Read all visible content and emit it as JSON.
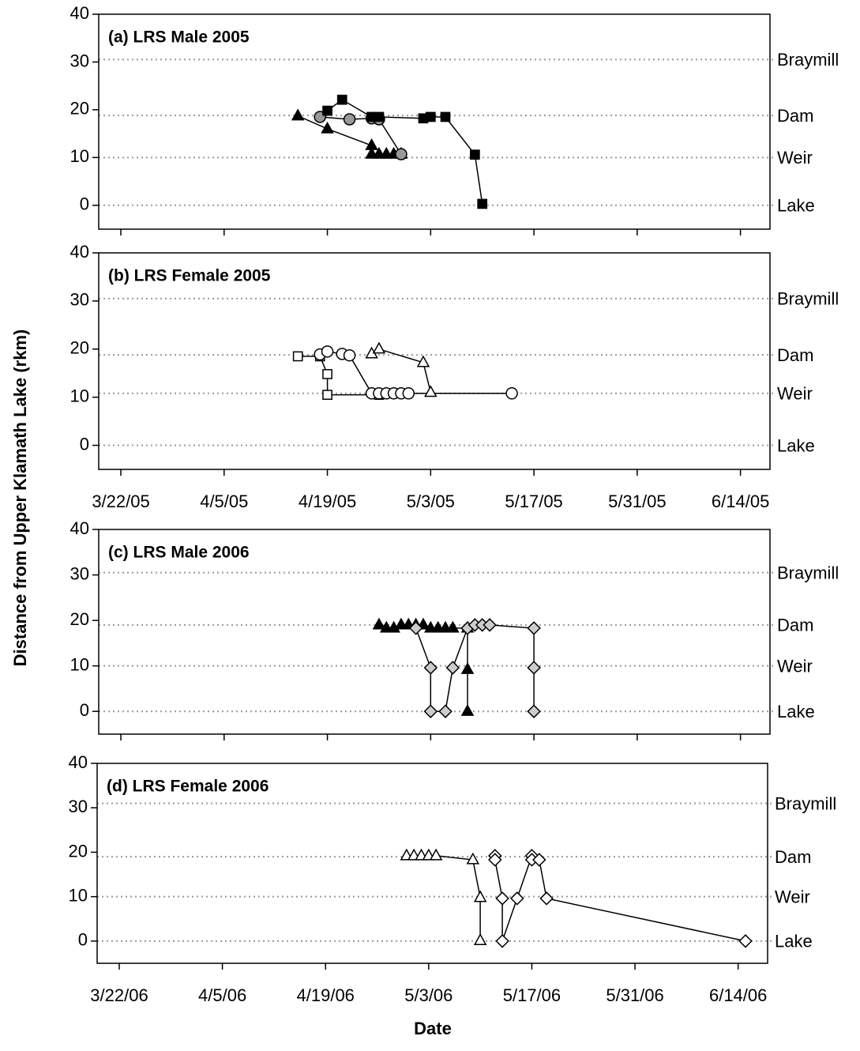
{
  "ylabel": "Distance from Upper Klamath Lake (rkm)",
  "xlabel": "Date",
  "chart_data": [
    {
      "type": "line",
      "title": "(a)  LRS Male 2005",
      "show_xtick_labels": false,
      "xlim": [
        "2005-03-19",
        "2005-06-18"
      ],
      "xticks": [
        {
          "value": "2005-03-22",
          "label": "3/22/05"
        },
        {
          "value": "2005-04-05",
          "label": "4/5/05"
        },
        {
          "value": "2005-04-19",
          "label": "4/19/05"
        },
        {
          "value": "2005-05-03",
          "label": "5/3/05"
        },
        {
          "value": "2005-05-17",
          "label": "5/17/05"
        },
        {
          "value": "2005-05-31",
          "label": "5/31/05"
        },
        {
          "value": "2005-06-14",
          "label": "6/14/05"
        }
      ],
      "ylim": [
        -5,
        40
      ],
      "yticks": [
        0,
        10,
        20,
        30,
        40
      ],
      "reference_lines": [
        {
          "value": 30.5,
          "label": "Braymill"
        },
        {
          "value": 18.8,
          "label": "Dam"
        },
        {
          "value": 10,
          "label": "Weir"
        },
        {
          "value": 0,
          "label": "Lake"
        }
      ],
      "series": [
        {
          "marker": "triangle",
          "color": "#000000",
          "fill": "#000000",
          "x": [
            "2005-04-15",
            "2005-04-19",
            "2005-04-25",
            "2005-04-25",
            "2005-04-26",
            "2005-04-27",
            "2005-04-28",
            "2005-04-29"
          ],
          "values": [
            18.7,
            16,
            12.5,
            10.7,
            10.7,
            10.7,
            10.7,
            10.7
          ]
        },
        {
          "marker": "circle",
          "color": "#000000",
          "fill": "#999999",
          "x": [
            "2005-04-18",
            "2005-04-22",
            "2005-04-25",
            "2005-04-26",
            "2005-04-29"
          ],
          "values": [
            18.5,
            18,
            18.2,
            18,
            10.7
          ]
        },
        {
          "marker": "square",
          "color": "#000000",
          "fill": "#000000",
          "x": [
            "2005-04-19",
            "2005-04-21",
            "2005-04-25",
            "2005-04-26",
            "2005-05-02",
            "2005-05-03",
            "2005-05-05",
            "2005-05-09",
            "2005-05-10"
          ],
          "values": [
            19.8,
            22.1,
            18.5,
            18.5,
            18.2,
            18.5,
            18.5,
            10.6,
            0.3
          ]
        }
      ]
    },
    {
      "type": "line",
      "title": "(b)  LRS Female 2005",
      "show_xtick_labels": true,
      "xlim": [
        "2005-03-19",
        "2005-06-18"
      ],
      "xticks": [
        {
          "value": "2005-03-22",
          "label": "3/22/05"
        },
        {
          "value": "2005-04-05",
          "label": "4/5/05"
        },
        {
          "value": "2005-04-19",
          "label": "4/19/05"
        },
        {
          "value": "2005-05-03",
          "label": "5/3/05"
        },
        {
          "value": "2005-05-17",
          "label": "5/17/05"
        },
        {
          "value": "2005-05-31",
          "label": "5/31/05"
        },
        {
          "value": "2005-06-14",
          "label": "6/14/05"
        }
      ],
      "ylim": [
        -5,
        40
      ],
      "yticks": [
        0,
        10,
        20,
        30,
        40
      ],
      "reference_lines": [
        {
          "value": 30.5,
          "label": "Braymill"
        },
        {
          "value": 18.8,
          "label": "Dam"
        },
        {
          "value": 10.8,
          "label": "Weir"
        },
        {
          "value": 0,
          "label": "Lake"
        }
      ],
      "series": [
        {
          "marker": "square",
          "color": "#000000",
          "fill": "#ffffff",
          "x": [
            "2005-04-15",
            "2005-04-18",
            "2005-04-19",
            "2005-04-19",
            "2005-04-26"
          ],
          "values": [
            18.5,
            18.5,
            14.8,
            10.5,
            10.5
          ]
        },
        {
          "marker": "circle",
          "color": "#000000",
          "fill": "#ffffff",
          "x": [
            "2005-04-18",
            "2005-04-19",
            "2005-04-21",
            "2005-04-22",
            "2005-04-25",
            "2005-04-26",
            "2005-04-27",
            "2005-04-28",
            "2005-04-29",
            "2005-04-30",
            "2005-05-14"
          ],
          "values": [
            18.9,
            19.5,
            19,
            18.7,
            10.8,
            10.8,
            10.8,
            10.8,
            10.8,
            10.8,
            10.8
          ]
        },
        {
          "marker": "triangle",
          "color": "#000000",
          "fill": "#ffffff",
          "x": [
            "2005-04-25",
            "2005-04-26",
            "2005-05-02",
            "2005-05-03"
          ],
          "values": [
            19,
            20,
            17.2,
            11
          ]
        }
      ]
    },
    {
      "type": "line",
      "title": "(c)  LRS Male 2006",
      "show_xtick_labels": false,
      "xlim": [
        "2006-03-19",
        "2006-06-18"
      ],
      "xticks": [
        {
          "value": "2006-03-22",
          "label": "3/22/06"
        },
        {
          "value": "2006-04-05",
          "label": "4/5/06"
        },
        {
          "value": "2006-04-19",
          "label": "4/19/06"
        },
        {
          "value": "2006-05-03",
          "label": "5/3/06"
        },
        {
          "value": "2006-05-17",
          "label": "5/17/06"
        },
        {
          "value": "2006-05-31",
          "label": "5/31/06"
        },
        {
          "value": "2006-06-14",
          "label": "6/14/06"
        }
      ],
      "ylim": [
        -5,
        40
      ],
      "yticks": [
        0,
        10,
        20,
        30,
        40
      ],
      "reference_lines": [
        {
          "value": 30.5,
          "label": "Braymill"
        },
        {
          "value": 19,
          "label": "Dam"
        },
        {
          "value": 10,
          "label": "Weir"
        },
        {
          "value": 0,
          "label": "Lake"
        }
      ],
      "series": [
        {
          "marker": "triangle",
          "color": "#000000",
          "fill": "#000000",
          "x": [
            "2006-04-26",
            "2006-04-27",
            "2006-04-28",
            "2006-04-29",
            "2006-04-30",
            "2006-05-01",
            "2006-05-02",
            "2006-05-03",
            "2006-05-04",
            "2006-05-05",
            "2006-05-06",
            "2006-05-08",
            "2006-05-08",
            "2006-05-08"
          ],
          "values": [
            19,
            18.3,
            18.3,
            19,
            19,
            19,
            19,
            18.3,
            18.3,
            18.3,
            18.3,
            18.3,
            9.2,
            0
          ]
        },
        {
          "marker": "diamond",
          "color": "#000000",
          "fill": "#cccccc",
          "x": [
            "2006-05-01",
            "2006-05-03",
            "2006-05-03",
            "2006-05-05",
            "2006-05-06",
            "2006-05-08",
            "2006-05-09",
            "2006-05-10",
            "2006-05-11",
            "2006-05-17",
            "2006-05-17",
            "2006-05-17"
          ],
          "values": [
            18.3,
            9.6,
            0,
            0,
            9.6,
            18.3,
            19,
            19,
            19,
            18.3,
            9.6,
            0
          ]
        }
      ]
    },
    {
      "type": "line",
      "title": "(d)  LRS Female 2006",
      "show_xtick_labels": true,
      "xlim": [
        "2006-03-19",
        "2006-06-18"
      ],
      "xticks": [
        {
          "value": "2006-03-22",
          "label": "3/22/06"
        },
        {
          "value": "2006-04-05",
          "label": "4/5/06"
        },
        {
          "value": "2006-04-19",
          "label": "4/19/06"
        },
        {
          "value": "2006-05-03",
          "label": "5/3/06"
        },
        {
          "value": "2006-05-17",
          "label": "5/17/06"
        },
        {
          "value": "2006-05-31",
          "label": "5/31/06"
        },
        {
          "value": "2006-06-14",
          "label": "6/14/06"
        }
      ],
      "ylim": [
        -5,
        40
      ],
      "yticks": [
        0,
        10,
        20,
        30,
        40
      ],
      "reference_lines": [
        {
          "value": 31,
          "label": "Braymill"
        },
        {
          "value": 19,
          "label": "Dam"
        },
        {
          "value": 10,
          "label": "Weir"
        },
        {
          "value": 0,
          "label": "Lake"
        }
      ],
      "series": [
        {
          "marker": "triangle",
          "color": "#000000",
          "fill": "#ffffff",
          "x": [
            "2006-04-30",
            "2006-05-01",
            "2006-05-02",
            "2006-05-03",
            "2006-05-04",
            "2006-05-09",
            "2006-05-10",
            "2006-05-10"
          ],
          "values": [
            19.2,
            19.2,
            19.2,
            19.2,
            19.2,
            18.3,
            9.8,
            0.1
          ]
        },
        {
          "marker": "diamond",
          "color": "#000000",
          "fill": "#ffffff",
          "x": [
            "2006-05-12",
            "2006-05-12",
            "2006-05-13",
            "2006-05-13",
            "2006-05-15",
            "2006-05-17",
            "2006-05-17",
            "2006-05-18",
            "2006-05-19",
            "2006-06-15"
          ],
          "values": [
            19.2,
            18.3,
            9.6,
            0,
            9.6,
            19.2,
            18.3,
            18.3,
            9.6,
            0
          ]
        }
      ]
    }
  ]
}
